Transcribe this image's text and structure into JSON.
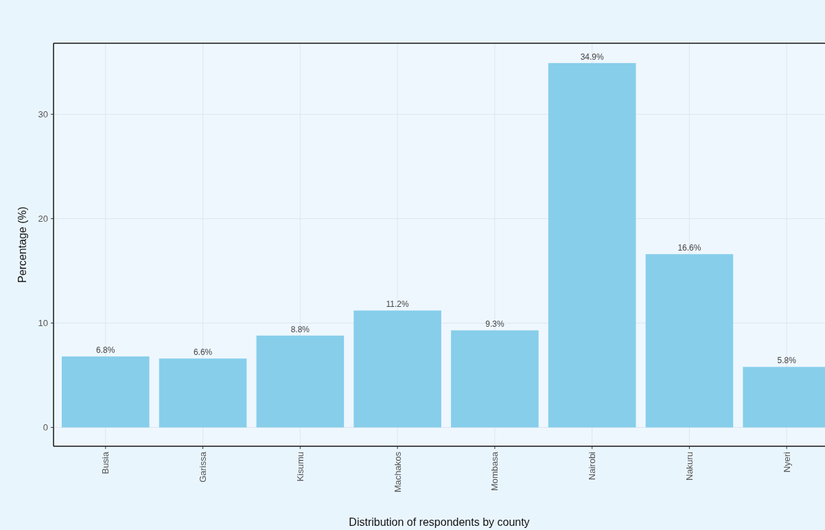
{
  "chart_data": {
    "type": "bar",
    "xlabel": "Distribution of respondents by county",
    "ylabel": "Percentage (%)",
    "categories": [
      "Busia",
      "Garissa",
      "Kisumu",
      "Machakos",
      "Mombasa",
      "Nairobi",
      "Nakuru",
      "Nyeri"
    ],
    "values": [
      6.8,
      6.6,
      8.8,
      11.2,
      9.3,
      34.9,
      16.6,
      5.8
    ],
    "value_labels": [
      "6.8%",
      "6.6%",
      "8.8%",
      "11.2%",
      "9.3%",
      "34.9%",
      "16.6%",
      "5.8%"
    ],
    "color": "#87ceeb",
    "ylim": [
      -1.8,
      36.8
    ],
    "yticks": [
      0,
      10,
      20,
      30
    ],
    "grid": true
  }
}
